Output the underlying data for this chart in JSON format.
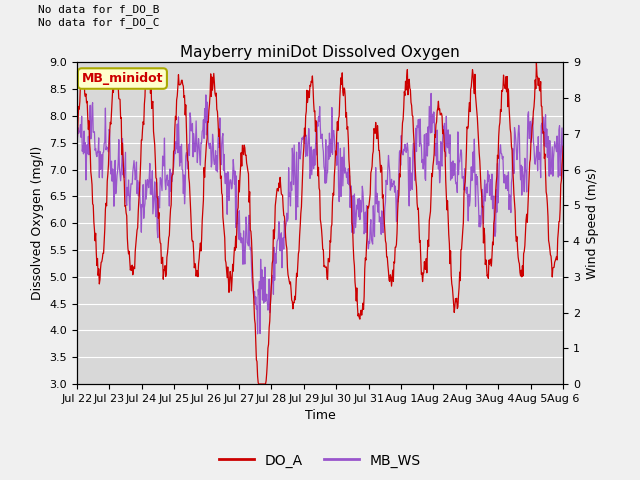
{
  "title": "Mayberry miniDot Dissolved Oxygen",
  "xlabel": "Time",
  "ylabel_left": "Dissolved Oxygen (mg/l)",
  "ylabel_right": "Wind Speed (m/s)",
  "ylim_left": [
    3.0,
    9.0
  ],
  "ylim_right": [
    0.0,
    9.0
  ],
  "note_line1": "No data for f_DO_B",
  "note_line2": "No data for f_DO_C",
  "legend_label_do": "DO_A",
  "legend_label_ws": "MB_WS",
  "legend_box_label": "MB_minidot",
  "legend_box_color": "#ffffcc",
  "legend_box_edge": "#aaaa00",
  "do_color": "#cc0000",
  "ws_color": "#9955cc",
  "fig_bg_color": "#f0f0f0",
  "ax_bg_color": "#d8d8d8",
  "grid_color": "#ffffff",
  "tick_labels": [
    "Jul 22",
    "Jul 23",
    "Jul 24",
    "Jul 25",
    "Jul 26",
    "Jul 27",
    "Jul 28",
    "Jul 29",
    "Jul 30",
    "Jul 31",
    "Aug 1",
    "Aug 2",
    "Aug 3",
    "Aug 4",
    "Aug 5",
    "Aug 6"
  ],
  "yticks_left": [
    3.0,
    3.5,
    4.0,
    4.5,
    5.0,
    5.5,
    6.0,
    6.5,
    7.0,
    7.5,
    8.0,
    8.5,
    9.0
  ],
  "yticks_right": [
    0.0,
    1.0,
    2.0,
    3.0,
    4.0,
    5.0,
    6.0,
    7.0,
    8.0,
    9.0
  ],
  "n_points": 800
}
